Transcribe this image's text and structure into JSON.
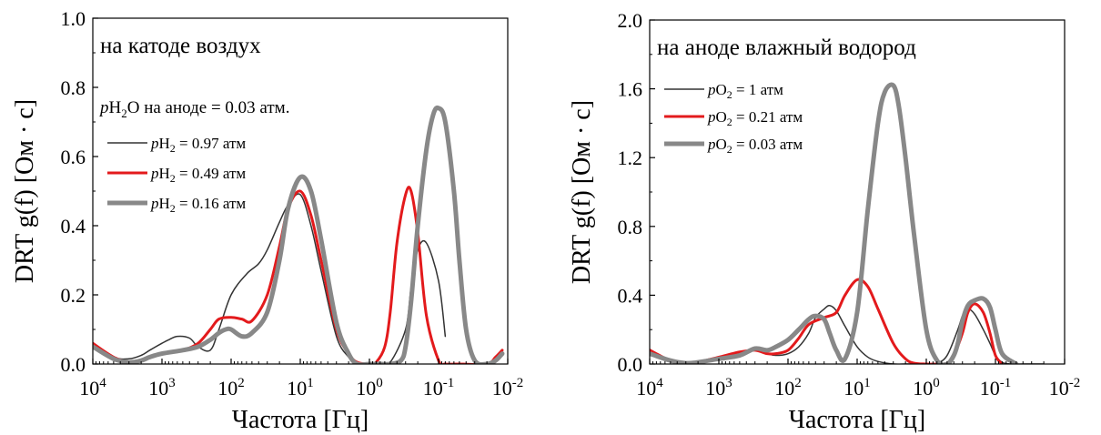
{
  "chart_data": [
    {
      "type": "line",
      "annotation": "на катоде воздух",
      "subtitle": "pH₂O на аноде = 0.03 атм.",
      "xlabel": "Частота [Гц]",
      "ylabel": "DRT g(f) [Ом · с]",
      "x_scale": "log",
      "x_reversed": true,
      "xlim": [
        10000,
        0.01
      ],
      "ylim": [
        0,
        1.0
      ],
      "x_ticks": [
        10000,
        1000,
        100,
        10,
        1,
        0.1,
        0.01
      ],
      "x_tick_labels": [
        {
          "base": "10",
          "exp": "4"
        },
        {
          "base": "10",
          "exp": "3"
        },
        {
          "base": "10",
          "exp": "2"
        },
        {
          "base": "10",
          "exp": "1"
        },
        {
          "base": "10",
          "exp": "0"
        },
        {
          "base": "10",
          "exp": "-1"
        },
        {
          "base": "10",
          "exp": "-2"
        }
      ],
      "y_ticks": [
        0.0,
        0.2,
        0.4,
        0.6,
        0.8,
        1.0
      ],
      "y_tick_labels": [
        "0.0",
        "0.2",
        "0.4",
        "0.6",
        "0.8",
        "1.0"
      ],
      "grid": false,
      "legend_position": "upper-left",
      "series": [
        {
          "name": "pH₂ = 0.97 атм",
          "legend": {
            "italic": "p",
            "main": "H",
            "sub": "2",
            "rest": " = 0.97 атм"
          },
          "color": "#333333",
          "width": 1.5,
          "x": [
            20000,
            10000,
            5000,
            3000,
            2000,
            1500,
            1000,
            800,
            600,
            400,
            300,
            200,
            150,
            100,
            60,
            40,
            30,
            20,
            15,
            10,
            7,
            5,
            3,
            2,
            1.5,
            1,
            0.7,
            0.5,
            0.3,
            0.25,
            0.2,
            0.15,
            0.1,
            0.08
          ],
          "y": [
            0.11,
            0.06,
            0.02,
            0.015,
            0.025,
            0.04,
            0.06,
            0.07,
            0.08,
            0.075,
            0.05,
            0.04,
            0.1,
            0.2,
            0.26,
            0.29,
            0.33,
            0.41,
            0.46,
            0.49,
            0.4,
            0.27,
            0.08,
            0.02,
            0.0,
            0.0,
            0.0,
            0.005,
            0.1,
            0.22,
            0.33,
            0.35,
            0.24,
            0.08
          ]
        },
        {
          "name": "pH₂ = 0.49 атм",
          "legend": {
            "italic": "p",
            "main": "H",
            "sub": "2",
            "rest": " = 0.49 атм"
          },
          "color": "#e31a1c",
          "width": 3,
          "x": [
            18000,
            10000,
            5000,
            3000,
            2000,
            1500,
            1000,
            500,
            300,
            200,
            150,
            100,
            70,
            50,
            30,
            20,
            15,
            10,
            7,
            5,
            3,
            2,
            1.5,
            1,
            0.8,
            0.6,
            0.5,
            0.4,
            0.3,
            0.25,
            0.2,
            0.15,
            0.1,
            0.08,
            0.05,
            0.02,
            0.015,
            0.012
          ],
          "y": [
            0.1,
            0.06,
            0.02,
            0.005,
            0.01,
            0.02,
            0.03,
            0.04,
            0.06,
            0.1,
            0.13,
            0.135,
            0.13,
            0.125,
            0.2,
            0.34,
            0.45,
            0.5,
            0.43,
            0.3,
            0.1,
            0.03,
            0.005,
            0.0,
            0.005,
            0.05,
            0.15,
            0.35,
            0.49,
            0.5,
            0.38,
            0.14,
            0.01,
            0.0,
            0.0,
            0.0,
            0.02,
            0.04
          ]
        },
        {
          "name": "pH₂ = 0.16 атм",
          "legend": {
            "italic": "p",
            "main": "H",
            "sub": "2",
            "rest": " = 0.16 атм"
          },
          "color": "#888888",
          "width": 5,
          "x": [
            18000,
            10000,
            5000,
            3000,
            2000,
            1500,
            1000,
            500,
            300,
            200,
            150,
            120,
            100,
            70,
            50,
            30,
            20,
            15,
            10,
            7,
            5,
            3,
            2,
            1.5,
            1,
            0.7,
            0.5,
            0.35,
            0.3,
            0.25,
            0.2,
            0.15,
            0.12,
            0.1,
            0.08,
            0.06,
            0.05,
            0.04,
            0.03,
            0.02,
            0.015,
            0.012
          ],
          "y": [
            0.08,
            0.05,
            0.015,
            0.005,
            0.01,
            0.02,
            0.03,
            0.04,
            0.05,
            0.07,
            0.09,
            0.1,
            0.1,
            0.08,
            0.09,
            0.15,
            0.3,
            0.45,
            0.54,
            0.5,
            0.36,
            0.12,
            0.03,
            0.0,
            0.0,
            0.0,
            0.0,
            0.01,
            0.05,
            0.18,
            0.4,
            0.62,
            0.72,
            0.74,
            0.7,
            0.5,
            0.3,
            0.1,
            0.01,
            0.0,
            0.01,
            0.03
          ]
        }
      ]
    },
    {
      "type": "line",
      "annotation": "на аноде влажный водород",
      "xlabel": "Частота [Гц]",
      "ylabel": "DRT g(f) [Ом · с]",
      "x_scale": "log",
      "x_reversed": true,
      "xlim": [
        10000,
        0.01
      ],
      "ylim": [
        0,
        2.0
      ],
      "x_ticks": [
        10000,
        1000,
        100,
        10,
        1,
        0.1,
        0.01
      ],
      "x_tick_labels": [
        {
          "base": "10",
          "exp": "4"
        },
        {
          "base": "10",
          "exp": "3"
        },
        {
          "base": "10",
          "exp": "2"
        },
        {
          "base": "10",
          "exp": "1"
        },
        {
          "base": "10",
          "exp": "0"
        },
        {
          "base": "10",
          "exp": "-1"
        },
        {
          "base": "10",
          "exp": "-2"
        }
      ],
      "y_ticks": [
        0.0,
        0.4,
        0.8,
        1.2,
        1.6,
        2.0
      ],
      "y_tick_labels": [
        "0.0",
        "0.4",
        "0.8",
        "1.2",
        "1.6",
        "2.0"
      ],
      "grid": false,
      "legend_position": "upper-left",
      "series": [
        {
          "name": "pO₂ = 1 атм",
          "legend": {
            "italic": "p",
            "main": "O",
            "sub": "2",
            "rest": " = 1 атм"
          },
          "color": "#333333",
          "width": 1.5,
          "x": [
            15000,
            8000,
            5000,
            3000,
            2000,
            1500,
            1000,
            500,
            300,
            200,
            150,
            100,
            70,
            50,
            40,
            30,
            25,
            20,
            15,
            10,
            7,
            5,
            3,
            2,
            1.5,
            1,
            0.7,
            0.5,
            0.35,
            0.3,
            0.25,
            0.2,
            0.15,
            0.12,
            0.1,
            0.08,
            0.06,
            0.04,
            0.03,
            0.02
          ],
          "y": [
            0.11,
            0.06,
            0.02,
            0.005,
            0.01,
            0.02,
            0.04,
            0.07,
            0.08,
            0.06,
            0.05,
            0.06,
            0.1,
            0.18,
            0.27,
            0.32,
            0.34,
            0.31,
            0.22,
            0.1,
            0.04,
            0.015,
            0.0,
            0.0,
            0.0,
            0.0,
            0.005,
            0.05,
            0.2,
            0.28,
            0.32,
            0.29,
            0.2,
            0.12,
            0.05,
            0.01,
            0.0,
            0.0,
            0.0,
            0.0
          ]
        },
        {
          "name": "pO₂ = 0.21 атм",
          "legend": {
            "italic": "p",
            "main": "O",
            "sub": "2",
            "rest": " = 0.21 атм"
          },
          "color": "#e31a1c",
          "width": 3,
          "x": [
            12000,
            8000,
            5000,
            3000,
            2000,
            1000,
            500,
            300,
            200,
            150,
            100,
            70,
            50,
            30,
            20,
            15,
            10,
            7,
            5,
            3,
            2,
            1.5,
            1,
            0.7,
            0.5,
            0.4,
            0.3,
            0.25,
            0.2,
            0.15,
            0.12,
            0.1,
            0.08
          ],
          "y": [
            0.1,
            0.06,
            0.02,
            0.005,
            0.01,
            0.04,
            0.07,
            0.08,
            0.06,
            0.06,
            0.08,
            0.15,
            0.23,
            0.27,
            0.3,
            0.4,
            0.49,
            0.45,
            0.32,
            0.12,
            0.03,
            0.005,
            0.0,
            0.0,
            0.005,
            0.05,
            0.18,
            0.3,
            0.35,
            0.3,
            0.18,
            0.05,
            0.0
          ]
        },
        {
          "name": "pO₂ = 0.03 атм",
          "legend": {
            "italic": "p",
            "main": "O",
            "sub": "2",
            "rest": " = 0.03 атм"
          },
          "color": "#888888",
          "width": 5,
          "x": [
            20000,
            10000,
            5000,
            3000,
            2000,
            1000,
            500,
            300,
            200,
            150,
            100,
            70,
            50,
            40,
            30,
            25,
            20,
            15,
            10,
            7,
            5,
            4,
            3,
            2.5,
            2,
            1.5,
            1,
            0.7,
            0.5,
            0.4,
            0.35,
            0.3,
            0.25,
            0.2,
            0.15,
            0.12,
            0.1,
            0.08,
            0.05
          ],
          "y": [
            0.1,
            0.06,
            0.02,
            0.005,
            0.01,
            0.03,
            0.05,
            0.09,
            0.08,
            0.1,
            0.14,
            0.2,
            0.26,
            0.28,
            0.26,
            0.18,
            0.08,
            0.03,
            0.3,
            0.9,
            1.4,
            1.58,
            1.62,
            1.5,
            1.2,
            0.75,
            0.2,
            0.02,
            0.0,
            0.05,
            0.12,
            0.25,
            0.34,
            0.37,
            0.38,
            0.33,
            0.2,
            0.06,
            0.0
          ]
        }
      ]
    }
  ]
}
